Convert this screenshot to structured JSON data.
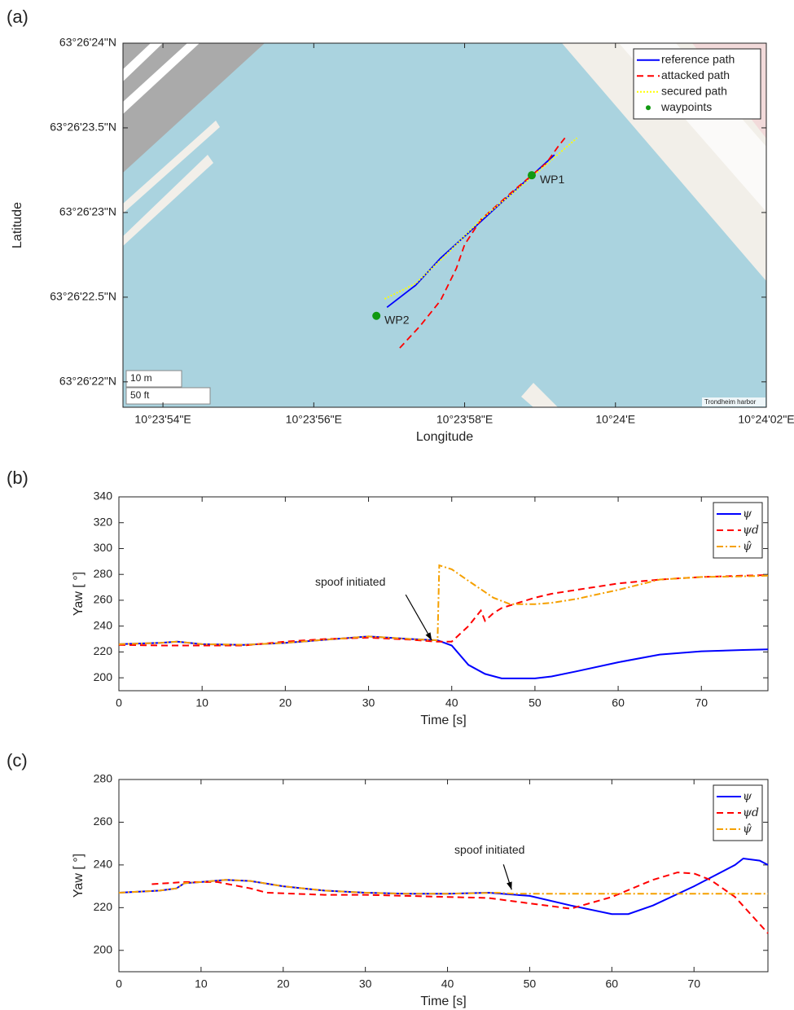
{
  "chart_data": [
    {
      "type": "map",
      "panel_label": "(a)",
      "xlabel": "Longitude",
      "ylabel": "Latitude",
      "xlim": [
        53.47,
        62
      ],
      "ylim": [
        21.85,
        24
      ],
      "xticks": [
        {
          "value": 54,
          "label": "10°23'54\"E"
        },
        {
          "value": 56,
          "label": "10°23'56\"E"
        },
        {
          "value": 58,
          "label": "10°23'58\"E"
        },
        {
          "value": 60,
          "label": "10°24'E"
        },
        {
          "value": 62,
          "label": "10°24'02\"E"
        }
      ],
      "yticks": [
        {
          "value": 22,
          "label": "63°26'22\"N"
        },
        {
          "value": 22.5,
          "label": "63°26'22.5\"N"
        },
        {
          "value": 23,
          "label": "63°26'23\"N"
        },
        {
          "value": 23.5,
          "label": "63°26'23.5\"N"
        },
        {
          "value": 24,
          "label": "63°26'24\"N"
        }
      ],
      "legend": "upper right",
      "series": [
        {
          "name": "reference path",
          "color": "#0000ff",
          "line_style": "solid",
          "x": [
            56.97,
            57.35,
            57.68,
            58.05,
            58.54,
            58.92,
            59.19
          ],
          "values": [
            22.44,
            22.57,
            22.73,
            22.88,
            23.08,
            23.23,
            23.34
          ]
        },
        {
          "name": "attacked path",
          "color": "#ff0000",
          "line_style": "dashed",
          "x": [
            57.14,
            57.41,
            57.68,
            57.89,
            58.0,
            58.22,
            58.65,
            59.08,
            59.24,
            59.33
          ],
          "values": [
            22.2,
            22.33,
            22.48,
            22.67,
            22.81,
            22.96,
            23.13,
            23.29,
            23.39,
            23.44
          ]
        },
        {
          "name": "secured path",
          "color": "#ffff00",
          "line_style": "dotted",
          "x": [
            56.94,
            57.35,
            57.73,
            58.22,
            58.76,
            59.49
          ],
          "values": [
            22.49,
            22.58,
            22.74,
            22.96,
            23.16,
            23.44
          ]
        },
        {
          "name": "waypoints",
          "color": "#119911",
          "line_style": "marker",
          "x": [
            58.89,
            56.83
          ],
          "values": [
            23.22,
            22.39
          ],
          "point_labels": [
            "WP1",
            "WP2"
          ]
        }
      ],
      "scale_labels": [
        "10 m",
        "50 ft"
      ],
      "attribution": "Trondheim harbor"
    },
    {
      "type": "line",
      "panel_label": "(b)",
      "xlabel": "Time [s]",
      "ylabel": "Yaw [ °]",
      "xlim": [
        0,
        78
      ],
      "ylim": [
        190,
        340
      ],
      "xticks": [
        0,
        10,
        20,
        30,
        40,
        50,
        60,
        70
      ],
      "yticks": [
        200,
        220,
        240,
        260,
        280,
        300,
        320,
        340
      ],
      "legend": "upper right",
      "annotation": {
        "text": "spoof initiated",
        "x": 37.6,
        "y": 229
      },
      "series": [
        {
          "name": "ψ",
          "color": "#0000ff",
          "line_style": "solid",
          "x": [
            0,
            5,
            7,
            10,
            15,
            20,
            25,
            30,
            35,
            38.3,
            40,
            42,
            44,
            46,
            50,
            52,
            55,
            60,
            65,
            70,
            75,
            78
          ],
          "values": [
            226,
            227,
            228,
            226,
            225.5,
            227,
            229.5,
            232,
            230,
            229,
            225,
            210,
            203,
            199.5,
            199.5,
            201,
            205,
            212,
            218,
            220.5,
            221.5,
            222
          ]
        },
        {
          "name": "ψd",
          "color": "#ff0000",
          "line_style": "dashed",
          "x": [
            0,
            5,
            10,
            15,
            20,
            25,
            30,
            35,
            38,
            40,
            42,
            43.5,
            44,
            45,
            46,
            48,
            50,
            52,
            55,
            60,
            65,
            70,
            75,
            78
          ],
          "values": [
            225.5,
            225,
            225,
            225,
            228,
            230,
            231,
            229.5,
            228,
            228,
            240,
            252,
            244,
            250,
            254,
            258,
            262,
            265,
            268,
            273,
            276,
            278,
            279,
            279.5
          ]
        },
        {
          "name": "ψ̂",
          "color": "#f5a000",
          "line_style": "dashdot",
          "x": [
            0,
            5,
            7,
            10,
            15,
            20,
            25,
            30,
            35,
            38.3,
            38.5,
            40,
            42,
            45,
            47,
            50,
            52,
            55,
            60,
            65,
            70,
            75,
            78
          ],
          "values": [
            226,
            227,
            228,
            226,
            225.5,
            227,
            229.5,
            232,
            230,
            229,
            287,
            284,
            275,
            262,
            257,
            257,
            258,
            261,
            268,
            276,
            278,
            278.5,
            279
          ]
        }
      ]
    },
    {
      "type": "line",
      "panel_label": "(c)",
      "xlabel": "Time [s]",
      "ylabel": "Yaw [ °]",
      "xlim": [
        0,
        79
      ],
      "ylim": [
        190,
        280
      ],
      "xticks": [
        0,
        10,
        20,
        30,
        40,
        50,
        60,
        70
      ],
      "yticks": [
        200,
        220,
        240,
        260,
        280
      ],
      "legend": "upper right",
      "annotation": {
        "text": "spoof initiated",
        "x": 47.8,
        "y": 228.4
      },
      "series": [
        {
          "name": "ψ",
          "color": "#0000ff",
          "line_style": "solid",
          "x": [
            0,
            5,
            7,
            8,
            10,
            13,
            16,
            20,
            25,
            30,
            35,
            40,
            45,
            50,
            55,
            60,
            62,
            65,
            70,
            75,
            76,
            78,
            79
          ],
          "values": [
            227,
            228,
            229,
            231.5,
            232,
            233,
            232.5,
            230,
            228,
            227,
            226.5,
            226.5,
            227,
            225.5,
            221,
            217,
            217,
            221,
            230,
            240,
            243,
            242,
            240
          ]
        },
        {
          "name": "ψd",
          "color": "#ff0000",
          "line_style": "dashed",
          "x": [
            4,
            6,
            8,
            12,
            16,
            18,
            25,
            30,
            35,
            40,
            45,
            50,
            55,
            60,
            65,
            68,
            70,
            72,
            75,
            79
          ],
          "values": [
            231,
            231.5,
            232,
            232,
            229,
            227,
            226,
            226,
            225.5,
            225,
            224.5,
            222,
            219.5,
            225,
            233,
            236.5,
            236,
            233,
            225,
            208
          ]
        },
        {
          "name": "ψ̂",
          "color": "#f5a000",
          "line_style": "dashdot",
          "x": [
            0,
            5,
            7,
            8,
            10,
            13,
            16,
            20,
            25,
            30,
            35,
            40,
            46,
            48,
            79
          ],
          "values": [
            227,
            228,
            229,
            231.5,
            232,
            233,
            232.5,
            230,
            228,
            227,
            226.5,
            226.5,
            227,
            226.5,
            226.5
          ]
        }
      ]
    }
  ]
}
